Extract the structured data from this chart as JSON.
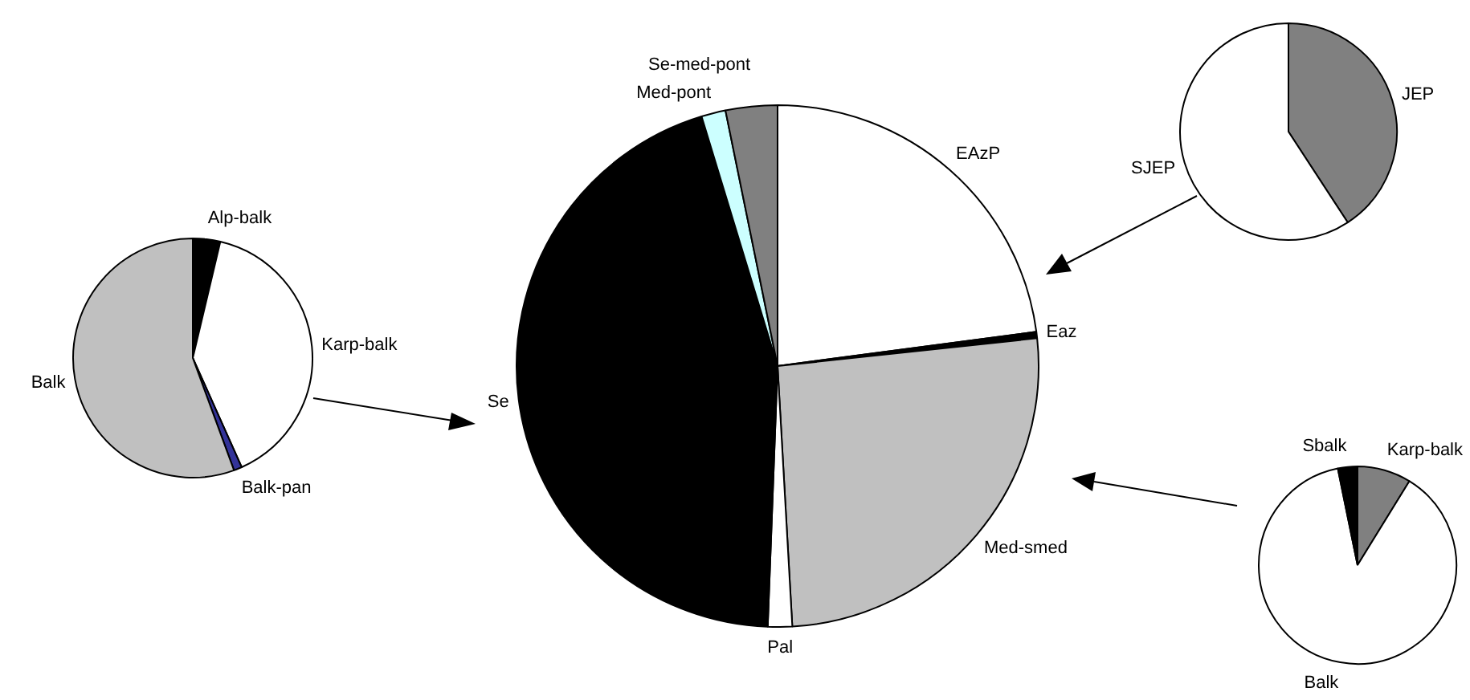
{
  "chart_data": [
    {
      "type": "pie",
      "categories": [
        "Alp-balk",
        "Karp-balk",
        "Balk-pan",
        "Balk"
      ],
      "values": [
        3.7,
        39.6,
        1.1,
        55.6
      ],
      "colors": [
        "#000000",
        "#ffffff",
        "#333399",
        "#c0c0c0"
      ]
    },
    {
      "type": "pie",
      "categories": [
        "EAzP",
        "Eaz",
        "Med-smed",
        "Pal",
        "Se",
        "Med-pont",
        "Se-med-pont"
      ],
      "values": [
        22.9,
        0.4,
        25.8,
        1.5,
        44.7,
        1.5,
        3.2
      ],
      "colors": [
        "#ffffff",
        "#000000",
        "#c0c0c0",
        "#ffffff",
        "#000000",
        "#ccffff",
        "#808080"
      ]
    },
    {
      "type": "pie",
      "categories": [
        "JEP",
        "SJEP"
      ],
      "values": [
        40.8,
        59.2
      ],
      "colors": [
        "#808080",
        "#ffffff"
      ]
    },
    {
      "type": "pie",
      "categories": [
        "Karp-balk",
        "Balk",
        "Sbalk"
      ],
      "values": [
        8.8,
        88.0,
        3.2
      ],
      "colors": [
        "#808080",
        "#ffffff",
        "#000000"
      ]
    }
  ]
}
